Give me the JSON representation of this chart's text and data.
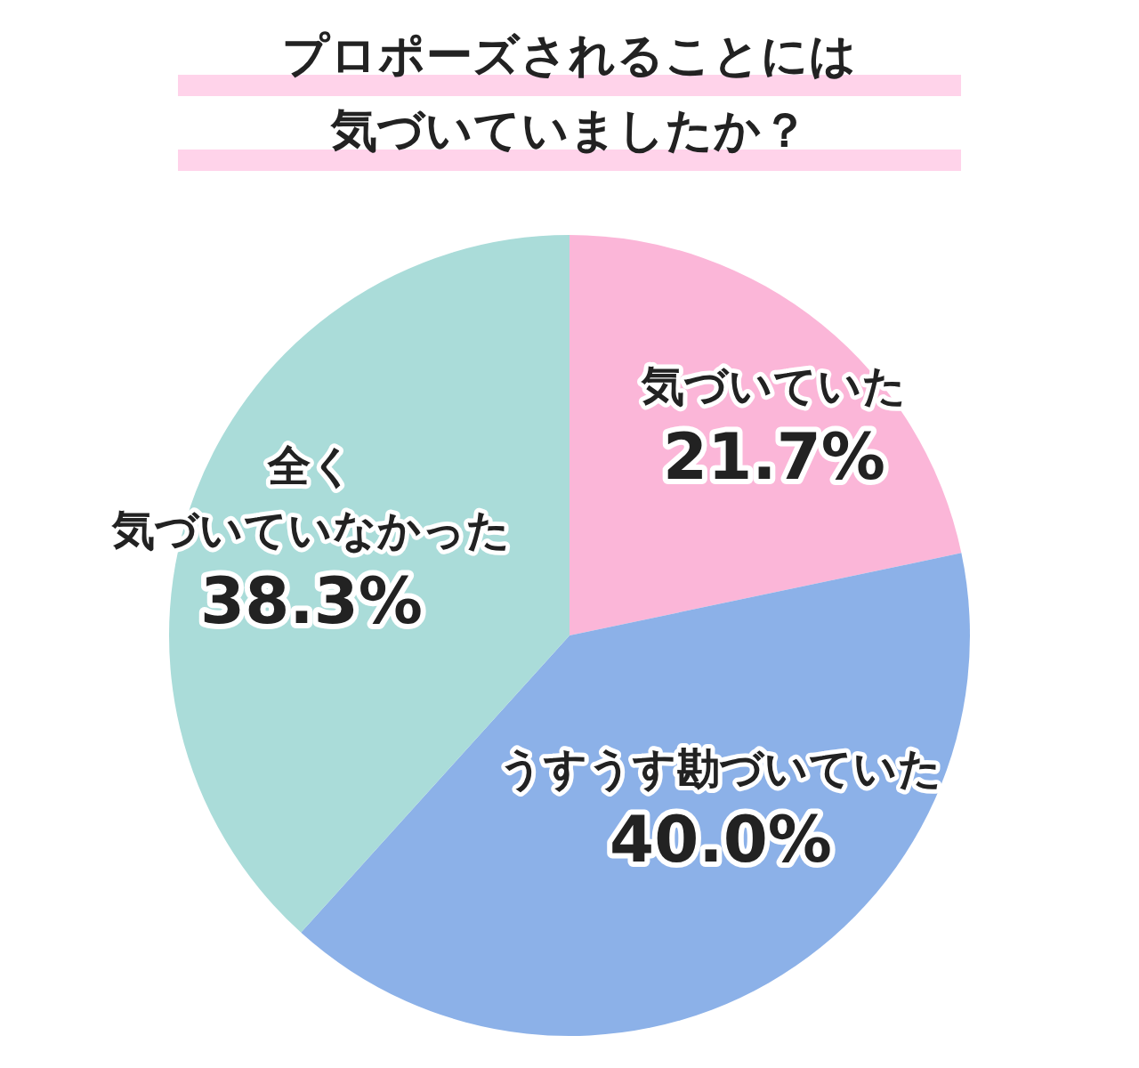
{
  "chart_data": {
    "type": "pie",
    "title": "プロポーズされることには気づいていましたか？",
    "categories": [
      "気づいていた",
      "うすうす勘づいていた",
      "全く気づいていなかった"
    ],
    "values": [
      21.7,
      40.0,
      38.3
    ],
    "colors": [
      "#fbb6d8",
      "#8cb1e8",
      "#aadcd9"
    ],
    "value_labels": [
      "21.7%",
      "40.0%",
      "38.3%"
    ]
  }
}
